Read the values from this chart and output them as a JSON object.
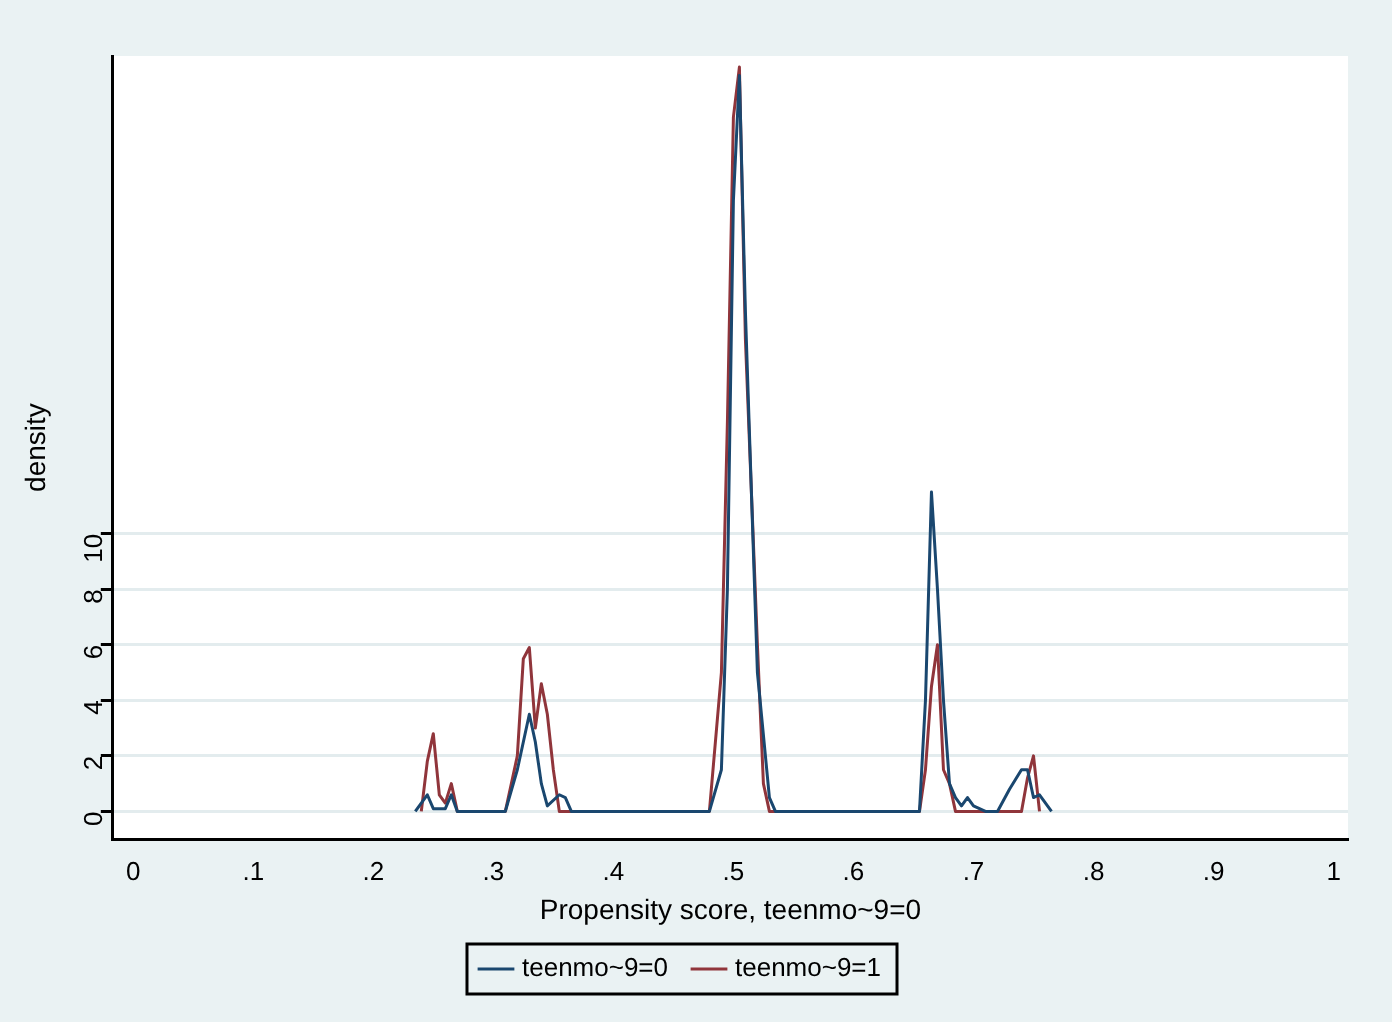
{
  "chart_data": {
    "type": "line",
    "xlabel": "Propensity score, teenmo~9=0",
    "ylabel": "density",
    "xlim": [
      -0.017,
      1.012
    ],
    "ylim": [
      -1,
      27.2
    ],
    "xticks": [
      0,
      {
        "value": 0.1,
        "label": ".1"
      },
      {
        "value": 0.2,
        "label": ".2"
      },
      {
        "value": 0.3,
        "label": ".3"
      },
      {
        "value": 0.4,
        "label": ".4"
      },
      {
        "value": 0.5,
        "label": ".5"
      },
      {
        "value": 0.6,
        "label": ".6"
      },
      {
        "value": 0.7,
        "label": ".7"
      },
      {
        "value": 0.8,
        "label": ".8"
      },
      {
        "value": 0.9,
        "label": ".9"
      },
      1
    ],
    "yticks": [
      0,
      2,
      4,
      6,
      8,
      10
    ],
    "grid": "y",
    "legend": "bottom",
    "series": [
      {
        "name": "teenmo~9=0",
        "color": "#1a476f",
        "x": [
          0.235,
          0.245,
          0.25,
          0.26,
          0.265,
          0.27,
          0.31,
          0.32,
          0.33,
          0.335,
          0.34,
          0.345,
          0.355,
          0.36,
          0.365,
          0.48,
          0.49,
          0.495,
          0.5,
          0.505,
          0.51,
          0.52,
          0.53,
          0.535,
          0.655,
          0.66,
          0.665,
          0.67,
          0.675,
          0.68,
          0.685,
          0.69,
          0.695,
          0.7,
          0.71,
          0.72,
          0.73,
          0.74,
          0.745,
          0.75,
          0.755,
          0.76,
          0.765
        ],
        "values": [
          0,
          0.6,
          0.1,
          0.1,
          0.6,
          0,
          0,
          1.5,
          3.5,
          2.5,
          1,
          0.2,
          0.6,
          0.5,
          0,
          0,
          1.5,
          8,
          22,
          26.5,
          18,
          5,
          0.5,
          0,
          0,
          4,
          11.5,
          8,
          4,
          1,
          0.5,
          0.2,
          0.5,
          0.2,
          0,
          0,
          0.8,
          1.5,
          1.5,
          0.5,
          0.6,
          0.3,
          0
        ]
      },
      {
        "name": "teenmo~9=1",
        "color": "#90353b",
        "x": [
          0.24,
          0.245,
          0.25,
          0.255,
          0.26,
          0.265,
          0.27,
          0.31,
          0.32,
          0.325,
          0.33,
          0.335,
          0.34,
          0.345,
          0.35,
          0.355,
          0.48,
          0.49,
          0.495,
          0.5,
          0.505,
          0.51,
          0.52,
          0.525,
          0.53,
          0.655,
          0.66,
          0.665,
          0.67,
          0.675,
          0.68,
          0.685,
          0.74,
          0.745,
          0.75,
          0.755
        ],
        "values": [
          0,
          1.8,
          2.8,
          0.6,
          0.3,
          1,
          0,
          0,
          2,
          5.5,
          5.9,
          3,
          4.6,
          3.5,
          1.5,
          0,
          0,
          5,
          14,
          25,
          26.8,
          17,
          6,
          1,
          0,
          0,
          1.5,
          4.5,
          6,
          1.5,
          1,
          0,
          0,
          1.2,
          2,
          0
        ]
      }
    ]
  }
}
